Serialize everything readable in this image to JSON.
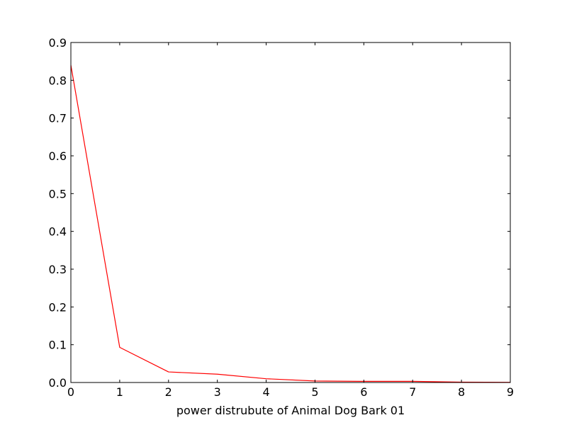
{
  "chart_data": {
    "type": "line",
    "title": "",
    "xlabel": "power distrubute of Animal Dog Bark 01",
    "ylabel": "",
    "xlim": [
      0,
      9
    ],
    "ylim": [
      0,
      0.9
    ],
    "x_ticks": [
      0,
      1,
      2,
      3,
      4,
      5,
      6,
      7,
      8,
      9
    ],
    "x_tick_labels": [
      "0",
      "1",
      "2",
      "3",
      "4",
      "5",
      "6",
      "7",
      "8",
      "9"
    ],
    "y_ticks": [
      0,
      0.1,
      0.2,
      0.3,
      0.4,
      0.5,
      0.6,
      0.7,
      0.8,
      0.9
    ],
    "y_tick_labels": [
      "0.0",
      "0.1",
      "0.2",
      "0.3",
      "0.4",
      "0.5",
      "0.6",
      "0.7",
      "0.8",
      "0.9"
    ],
    "grid": false,
    "legend": "none",
    "series": [
      {
        "color": "#ff0000",
        "x": [
          0,
          1,
          2,
          3,
          4,
          5,
          6,
          7,
          8,
          9
        ],
        "y": [
          0.84,
          0.093,
          0.028,
          0.022,
          0.01,
          0.004,
          0.003,
          0.003,
          0.001,
          0.0005
        ]
      }
    ]
  }
}
